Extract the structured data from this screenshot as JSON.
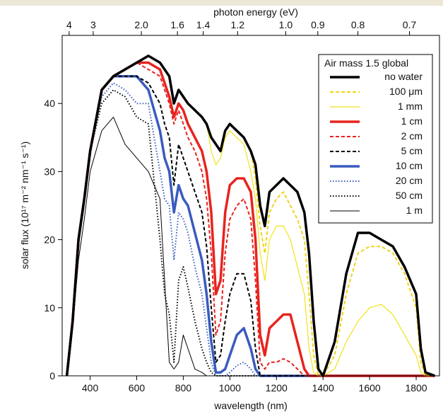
{
  "chart_data": {
    "type": "line",
    "xlabel": "wavelength (nm)",
    "ylabel": "solar flux (10¹⁷ m⁻² nm⁻¹ s⁻¹)",
    "x2label": "photon energy (eV)",
    "legend_title": "Air mass 1.5 global",
    "legend": "upper right",
    "xlim": [
      280,
      1900
    ],
    "ylim": [
      0,
      50
    ],
    "xticks": [
      400,
      600,
      800,
      1000,
      1200,
      1400,
      1600,
      1800
    ],
    "yticks": [
      0,
      10,
      20,
      30,
      40
    ],
    "x2ticks": [
      4,
      3,
      {
        "value": 2,
        "label": "2.0"
      },
      1.6,
      1.4,
      1.2,
      {
        "value": 1,
        "label": "1.0"
      },
      0.9,
      0.8,
      0.7
    ],
    "x": [
      300,
      325,
      350,
      375,
      400,
      450,
      500,
      550,
      600,
      650,
      700,
      720,
      740,
      760,
      780,
      800,
      820,
      850,
      880,
      900,
      920,
      940,
      960,
      980,
      1000,
      1030,
      1060,
      1090,
      1110,
      1130,
      1150,
      1170,
      1200,
      1230,
      1260,
      1290,
      1320,
      1340,
      1360,
      1380,
      1400,
      1450,
      1500,
      1550,
      1600,
      1650,
      1700,
      1750,
      1800,
      1820,
      1840,
      1880
    ],
    "series": [
      {
        "name": "no water",
        "color": "#000000",
        "width": 3.5,
        "dash": "solid",
        "values": [
          0,
          8,
          20,
          26,
          33,
          42,
          44,
          45,
          46,
          47,
          46,
          45,
          44,
          40,
          42,
          41,
          40,
          39,
          38,
          37,
          35,
          34,
          33,
          36,
          37,
          36,
          35,
          33,
          31,
          25,
          22,
          27,
          28,
          29,
          28,
          27,
          24,
          18,
          8,
          1,
          0,
          5,
          15,
          21,
          21,
          20,
          19,
          16,
          12,
          4,
          0.5,
          0
        ]
      },
      {
        "name": "100 μm",
        "color": "#f2d21b",
        "width": 2,
        "dash": "dashed",
        "values": [
          0,
          8,
          20,
          26,
          33,
          42,
          44,
          45,
          46,
          47,
          46,
          45,
          44,
          40,
          42,
          41,
          40,
          39,
          38,
          37,
          35,
          34,
          33,
          36,
          37,
          36,
          35,
          33,
          29,
          22,
          18,
          24,
          26,
          27,
          25,
          23,
          20,
          12,
          3,
          0,
          0,
          3,
          12,
          18,
          19,
          19,
          18,
          15,
          10,
          2,
          0,
          0
        ]
      },
      {
        "name": "1 mm",
        "color": "#f2e21b",
        "width": 1.2,
        "dash": "solid",
        "values": [
          0,
          8,
          20,
          26,
          33,
          42,
          44,
          45,
          46,
          47,
          46,
          45,
          44,
          40,
          42,
          41,
          40,
          39,
          38,
          37,
          33,
          31,
          32,
          35,
          36,
          35,
          34,
          30,
          26,
          18,
          14,
          20,
          22,
          22,
          20,
          16,
          12,
          4,
          0.5,
          0,
          0,
          1,
          5,
          8,
          10,
          10.5,
          9,
          6,
          3,
          0.5,
          0,
          0
        ]
      },
      {
        "name": "1 cm",
        "color": "#e8231e",
        "width": 3.5,
        "dash": "solid",
        "values": [
          0,
          8,
          20,
          26,
          33,
          42,
          44,
          45,
          46,
          46,
          45,
          43,
          41,
          38,
          40,
          39,
          37,
          35,
          33,
          30,
          24,
          12,
          14,
          24,
          28,
          29,
          29,
          27,
          20,
          6,
          3,
          7,
          8,
          9,
          9,
          5,
          1,
          0,
          0,
          0,
          0,
          0,
          0,
          0,
          0,
          0,
          0,
          0,
          0,
          0,
          0,
          0
        ]
      },
      {
        "name": "2 cm",
        "color": "#e8231e",
        "width": 2,
        "dash": "dashed",
        "values": [
          0,
          8,
          20,
          26,
          33,
          42,
          44,
          45,
          46,
          45,
          44,
          42,
          40,
          37,
          39,
          37,
          35,
          33,
          30,
          26,
          18,
          6,
          8,
          18,
          23,
          25,
          26,
          23,
          14,
          2,
          1,
          2,
          2,
          2.5,
          2,
          1,
          0,
          0,
          0,
          0,
          0,
          0,
          0,
          0,
          0,
          0,
          0,
          0,
          0,
          0,
          0,
          0
        ]
      },
      {
        "name": "5 cm",
        "color": "#000000",
        "width": 2,
        "dash": "dashed",
        "values": [
          0,
          8,
          20,
          26,
          33,
          42,
          44,
          44,
          44,
          43,
          40,
          37,
          35,
          28,
          34,
          32,
          30,
          27,
          24,
          19,
          10,
          2,
          3,
          8,
          12,
          15,
          15,
          11,
          4,
          0,
          0,
          0,
          0,
          0,
          0,
          0,
          0,
          0,
          0,
          0,
          0,
          0,
          0,
          0,
          0,
          0,
          0,
          0,
          0,
          0,
          0,
          0
        ]
      },
      {
        "name": "10 cm",
        "color": "#3a5bbf",
        "width": 3.5,
        "dash": "solid",
        "values": [
          0,
          8,
          20,
          26,
          33,
          42,
          44,
          44,
          44,
          42,
          36,
          32,
          30,
          24,
          28,
          26,
          25,
          21,
          17,
          12,
          5,
          0.5,
          0.5,
          1,
          3,
          6,
          7,
          4,
          1,
          0,
          0,
          0,
          0,
          0,
          0,
          0,
          0,
          0,
          0,
          0,
          0,
          0,
          0,
          0,
          0,
          0,
          0,
          0,
          0,
          0,
          0,
          0
        ]
      },
      {
        "name": "20 cm",
        "color": "#3a5bbf",
        "width": 2,
        "dash": "dotted",
        "values": [
          0,
          8,
          20,
          26,
          33,
          41,
          43,
          42,
          40,
          40,
          30,
          26,
          25,
          17,
          24,
          23,
          21,
          16,
          12,
          7,
          2,
          0,
          0,
          0,
          0.5,
          1.5,
          2,
          1,
          0,
          0,
          0,
          0,
          0,
          0,
          0,
          0,
          0,
          0,
          0,
          0,
          0,
          0,
          0,
          0,
          0,
          0,
          0,
          0,
          0,
          0,
          0,
          0
        ]
      },
      {
        "name": "50 cm",
        "color": "#000000",
        "width": 2,
        "dash": "dotted",
        "values": [
          0,
          8,
          20,
          26,
          33,
          40,
          42,
          41,
          38,
          37,
          20,
          12,
          9,
          2,
          14,
          16,
          13,
          8,
          4,
          2,
          0.5,
          0,
          0,
          0,
          0,
          0,
          0,
          0,
          0,
          0,
          0,
          0,
          0,
          0,
          0,
          0,
          0,
          0,
          0,
          0,
          0,
          0,
          0,
          0,
          0,
          0,
          0,
          0,
          0,
          0,
          0,
          0
        ]
      },
      {
        "name": "1  m",
        "color": "#000000",
        "width": 1,
        "dash": "solid",
        "values": [
          0,
          7,
          17,
          23,
          30,
          36,
          38,
          34,
          32,
          30,
          26,
          14,
          2,
          1,
          2,
          6,
          4,
          1,
          0.5,
          0,
          0,
          0,
          0,
          0,
          0,
          0,
          0,
          0,
          0,
          0,
          0,
          0,
          0,
          0,
          0,
          0,
          0,
          0,
          0,
          0,
          0,
          0,
          0,
          0,
          0,
          0,
          0,
          0,
          0,
          0,
          0,
          0
        ]
      }
    ]
  }
}
